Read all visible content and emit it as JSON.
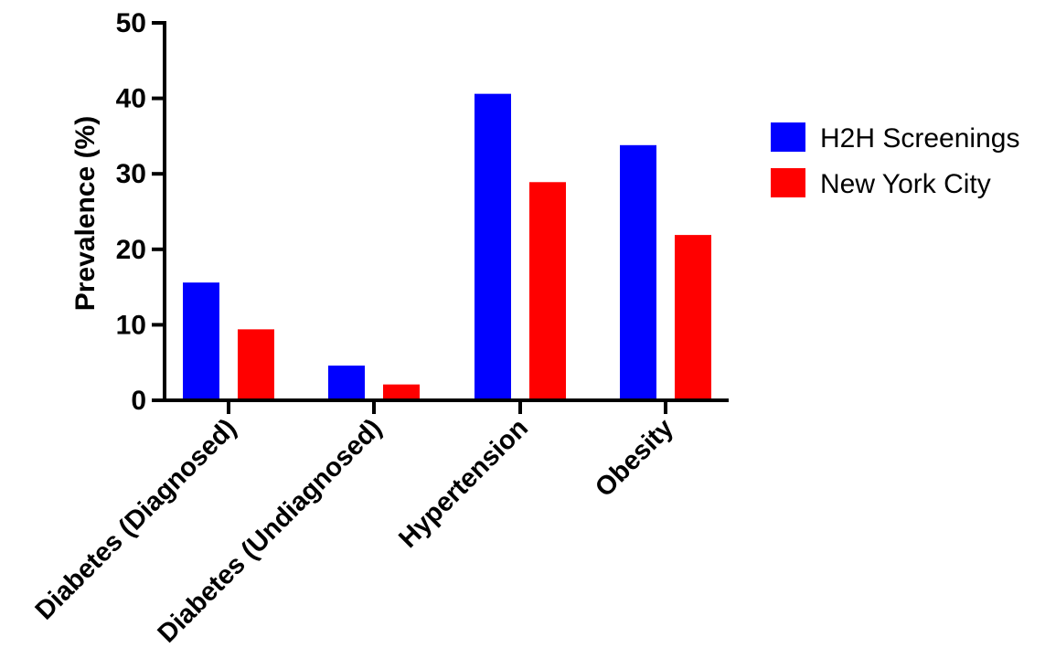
{
  "chart_data": {
    "type": "bar",
    "title": "",
    "xlabel": "",
    "ylabel": "Prevalence (%)",
    "ylim": [
      0,
      50
    ],
    "yticks": [
      0,
      10,
      20,
      30,
      40,
      50
    ],
    "categories": [
      "Diabetes (Diagnosed)",
      "Diabetes (Undiagnosed)",
      "Hypertension",
      "Obesity"
    ],
    "series": [
      {
        "name": "H2H Screenings",
        "color": "#0000ff",
        "values": [
          15.6,
          4.6,
          40.6,
          33.8
        ]
      },
      {
        "name": "New York City",
        "color": "#ff0000",
        "values": [
          9.4,
          2.1,
          28.9,
          21.9
        ]
      }
    ],
    "grid": false,
    "legend": "right"
  }
}
